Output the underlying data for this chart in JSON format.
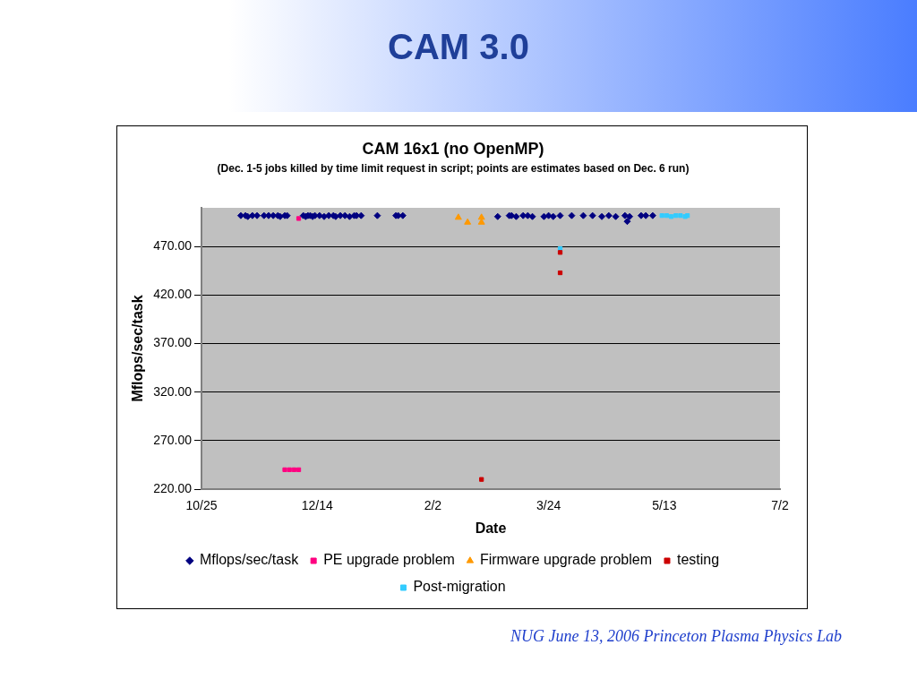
{
  "chart_data": {
    "type": "scatter",
    "title": "CAM 16x1 (no OpenMP)",
    "subtitle": "(Dec. 1-5 jobs killed by time limit request in script; points are estimates based on Dec. 6 run)",
    "xlabel": "Date",
    "ylabel": "Mflops/sec/task",
    "annotations": [
      "CAM 3.0",
      "NUG June 13, 2006 Princeton Plasma Physics Lab"
    ],
    "xlim": [
      "2005-10-25",
      "2006-07-02"
    ],
    "xticks": [
      {
        "value": "2005-10-25",
        "label": "10/25"
      },
      {
        "value": "2005-12-14",
        "label": "12/14"
      },
      {
        "value": "2006-02-02",
        "label": "2/2"
      },
      {
        "value": "2006-03-24",
        "label": "3/24"
      },
      {
        "value": "2006-05-13",
        "label": "5/13"
      },
      {
        "value": "2006-07-02",
        "label": "7/2"
      }
    ],
    "ylim": [
      220,
      510
    ],
    "yticks": [
      {
        "value": 220,
        "label": "220.00"
      },
      {
        "value": 270,
        "label": "270.00"
      },
      {
        "value": 320,
        "label": "320.00"
      },
      {
        "value": 370,
        "label": "370.00"
      },
      {
        "value": 420,
        "label": "420.00"
      },
      {
        "value": 470,
        "label": "470.00"
      }
    ],
    "grid": "y",
    "legend": "bottom",
    "series": [
      {
        "name": "Mflops/sec/task",
        "color": "#000080",
        "marker": "diamond",
        "x": [
          "2005-11-11",
          "2005-11-13",
          "2005-11-14",
          "2005-11-16",
          "2005-11-18",
          "2005-11-21",
          "2005-11-23",
          "2005-11-25",
          "2005-11-27",
          "2005-11-28",
          "2005-11-30",
          "2005-12-01",
          "2005-12-08",
          "2005-12-09",
          "2005-12-10",
          "2005-12-11",
          "2005-12-12",
          "2005-12-13",
          "2005-12-15",
          "2005-12-17",
          "2005-12-19",
          "2005-12-21",
          "2005-12-22",
          "2005-12-24",
          "2005-12-26",
          "2005-12-28",
          "2005-12-30",
          "2005-12-31",
          "2006-01-02",
          "2006-01-09",
          "2006-01-17",
          "2006-01-18",
          "2006-01-20",
          "2006-03-02",
          "2006-03-07",
          "2006-03-08",
          "2006-03-10",
          "2006-03-13",
          "2006-03-15",
          "2006-03-17",
          "2006-03-22",
          "2006-03-24",
          "2006-03-26",
          "2006-03-29",
          "2006-04-03",
          "2006-04-08",
          "2006-04-12",
          "2006-04-16",
          "2006-04-19",
          "2006-04-22",
          "2006-04-26",
          "2006-04-27",
          "2006-04-28",
          "2006-05-03",
          "2006-05-05",
          "2006-05-08"
        ],
        "values": [
          502,
          502,
          501,
          502,
          502,
          502,
          502,
          502,
          502,
          501,
          502,
          502,
          502,
          501,
          502,
          502,
          501,
          502,
          502,
          501,
          502,
          502,
          501,
          502,
          502,
          501,
          502,
          502,
          502,
          502,
          502,
          502,
          502,
          501,
          502,
          502,
          501,
          502,
          502,
          501,
          501,
          502,
          501,
          502,
          502,
          502,
          502,
          501,
          502,
          501,
          502,
          496,
          501,
          502,
          502,
          502
        ]
      },
      {
        "name": "PE upgrade problem",
        "color": "#ff0080",
        "marker": "square",
        "x": [
          "2005-12-06",
          "2005-11-30",
          "2005-12-02",
          "2005-12-04",
          "2005-12-06"
        ],
        "values": [
          499,
          240,
          240,
          240,
          240
        ]
      },
      {
        "name": "Firmware upgrade problem",
        "color": "#ff9900",
        "marker": "triangle",
        "x": [
          "2006-02-13",
          "2006-02-17",
          "2006-02-23",
          "2006-02-23"
        ],
        "values": [
          500,
          495,
          500,
          495
        ]
      },
      {
        "name": "testing",
        "color": "#cc0000",
        "marker": "square",
        "x": [
          "2006-02-23",
          "2006-03-29",
          "2006-03-29"
        ],
        "values": [
          230,
          464,
          443
        ]
      },
      {
        "name": "Post-migration",
        "color": "#33ccff",
        "marker": "square",
        "x": [
          "2006-03-29",
          "2006-05-12",
          "2006-05-14",
          "2006-05-16",
          "2006-05-18",
          "2006-05-20",
          "2006-05-22",
          "2006-05-23"
        ],
        "values": [
          468,
          502,
          502,
          501,
          502,
          502,
          501,
          502
        ]
      }
    ]
  }
}
